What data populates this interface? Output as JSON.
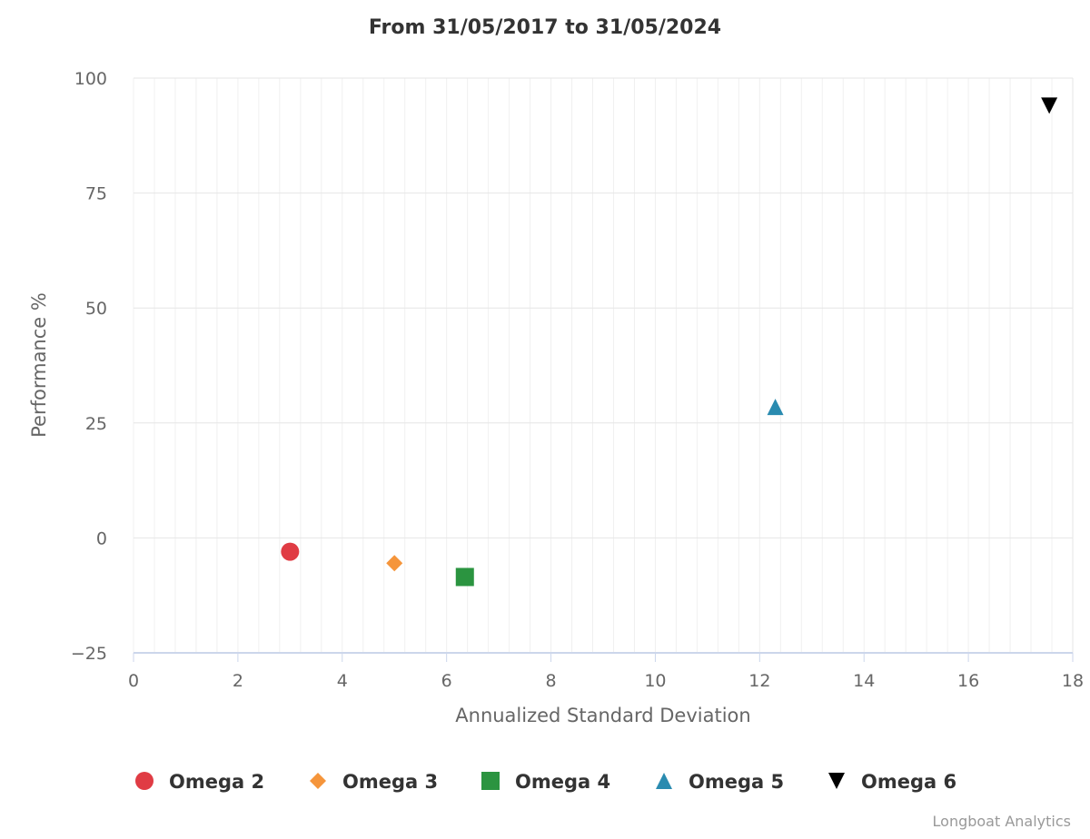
{
  "chart_data": {
    "type": "scatter",
    "title": "From 31/05/2017 to 31/05/2024",
    "xlabel": "Annualized Standard Deviation",
    "ylabel": "Performance %",
    "xlim": [
      0,
      18
    ],
    "ylim": [
      -25,
      100
    ],
    "x_ticks": [
      0,
      2,
      4,
      6,
      8,
      10,
      12,
      14,
      16,
      18
    ],
    "y_ticks": [
      -25,
      0,
      25,
      50,
      75,
      100
    ],
    "x_tick_labels": [
      "0",
      "2",
      "4",
      "6",
      "8",
      "10",
      "12",
      "14",
      "16",
      "18"
    ],
    "y_tick_labels": [
      "−25",
      "0",
      "25",
      "50",
      "75",
      "100"
    ],
    "grid": true,
    "legend_position": "bottom",
    "series": [
      {
        "name": "Omega 2",
        "marker": "circle",
        "color": "#e03c44",
        "x": 3.0,
        "y": -3.0
      },
      {
        "name": "Omega 3",
        "marker": "diamond",
        "color": "#f5953b",
        "x": 5.0,
        "y": -5.5
      },
      {
        "name": "Omega 4",
        "marker": "square",
        "color": "#2b9440",
        "x": 6.35,
        "y": -8.5
      },
      {
        "name": "Omega 5",
        "marker": "triangle",
        "color": "#2a8bb0",
        "x": 12.3,
        "y": 28.5
      },
      {
        "name": "Omega 6",
        "marker": "triangle-down",
        "color": "#000000",
        "x": 17.55,
        "y": 94.0
      }
    ]
  },
  "credit": "Longboat Analytics"
}
